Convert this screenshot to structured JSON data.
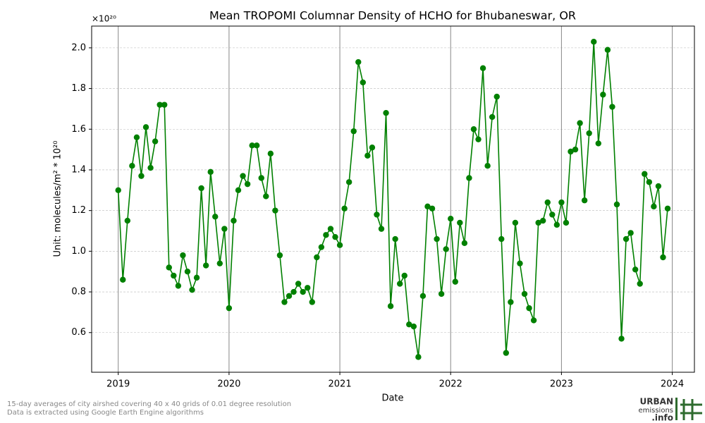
{
  "chart_data": {
    "type": "line",
    "title": "Mean TROPOMI Columnar Density of HCHO for Bhubaneswar, OR",
    "x_label": "Date",
    "y_label": "Unit: molecules/m² * 10²⁰",
    "y_offset_label": "×10²⁰",
    "footnotes": [
      "15-day averages of city airshed covering 40 x 40 grids of 0.01 degree resolution",
      "Data is extracted using Google Earth Engine algorithms"
    ],
    "logo": [
      "URBAN",
      "emissions",
      ".info"
    ],
    "grid": true,
    "x": [
      2019,
      2019.0417,
      2019.0833,
      2019.125,
      2019.1667,
      2019.2083,
      2019.25,
      2019.2917,
      2019.3333,
      2019.375,
      2019.4167,
      2019.4583,
      2019.5,
      2019.5417,
      2019.5833,
      2019.625,
      2019.6667,
      2019.7083,
      2019.75,
      2019.7917,
      2019.8333,
      2019.875,
      2019.9167,
      2019.9583,
      2020,
      2020.0417,
      2020.0833,
      2020.125,
      2020.1667,
      2020.2083,
      2020.25,
      2020.2917,
      2020.3333,
      2020.375,
      2020.4167,
      2020.4583,
      2020.5,
      2020.5417,
      2020.5833,
      2020.625,
      2020.6667,
      2020.7083,
      2020.75,
      2020.7917,
      2020.8333,
      2020.875,
      2020.9167,
      2020.9583,
      2021,
      2021.0417,
      2021.0833,
      2021.125,
      2021.1667,
      2021.2083,
      2021.25,
      2021.2917,
      2021.3333,
      2021.375,
      2021.4167,
      2021.4583,
      2021.5,
      2021.5417,
      2021.5833,
      2021.625,
      2021.6667,
      2021.7083,
      2021.75,
      2021.7917,
      2021.8333,
      2021.875,
      2021.9167,
      2021.9583,
      2022,
      2022.0417,
      2022.0833,
      2022.125,
      2022.1667,
      2022.2083,
      2022.25,
      2022.2917,
      2022.3333,
      2022.375,
      2022.4167,
      2022.4583,
      2022.5,
      2022.5417,
      2022.5833,
      2022.625,
      2022.6667,
      2022.7083,
      2022.75,
      2022.7917,
      2022.8333,
      2022.875,
      2022.9167,
      2022.9583,
      2023,
      2023.0417,
      2023.0833,
      2023.125,
      2023.1667,
      2023.2083,
      2023.25,
      2023.2917,
      2023.3333,
      2023.375,
      2023.4167,
      2023.4583,
      2023.5,
      2023.5417,
      2023.5833,
      2023.625,
      2023.6667,
      2023.7083,
      2023.75,
      2023.7917,
      2023.8333,
      2023.875,
      2023.9167,
      2023.9583
    ],
    "series": [
      {
        "name": "HCHO",
        "color": "#008000",
        "values": [
          1.3,
          0.86,
          1.15,
          1.42,
          1.56,
          1.37,
          1.61,
          1.41,
          1.54,
          1.72,
          1.72,
          0.92,
          0.88,
          0.83,
          0.98,
          0.9,
          0.81,
          0.87,
          1.31,
          0.93,
          1.39,
          1.17,
          0.94,
          1.11,
          0.72,
          1.15,
          1.3,
          1.37,
          1.33,
          1.52,
          1.52,
          1.36,
          1.27,
          1.48,
          1.2,
          0.98,
          0.75,
          0.78,
          0.8,
          0.84,
          0.8,
          0.82,
          0.75,
          0.97,
          1.02,
          1.08,
          1.11,
          1.07,
          1.03,
          1.21,
          1.34,
          1.59,
          1.93,
          1.83,
          1.47,
          1.51,
          1.18,
          1.11,
          1.68,
          0.73,
          1.06,
          0.84,
          0.88,
          0.64,
          0.63,
          0.48,
          0.78,
          1.22,
          1.21,
          1.06,
          0.79,
          1.01,
          1.16,
          0.85,
          1.14,
          1.04,
          1.36,
          1.6,
          1.55,
          1.9,
          1.42,
          1.66,
          1.76,
          1.06,
          0.5,
          0.75,
          1.14,
          0.94,
          0.79,
          0.72,
          0.66,
          1.14,
          1.15,
          1.24,
          1.18,
          1.13,
          1.24,
          1.14,
          1.49,
          1.5,
          1.63,
          1.25,
          1.58,
          2.03,
          1.53,
          1.77,
          1.99,
          1.71,
          1.23,
          0.57,
          1.06,
          1.09,
          0.91,
          0.84,
          1.38,
          1.34,
          1.22,
          1.32,
          0.97,
          1.21
        ]
      }
    ],
    "xlim": [
      2018.76,
      2024.2
    ],
    "xticks": [
      2019,
      2020,
      2021,
      2022,
      2023,
      2024
    ],
    "ylim": [
      0.405,
      2.107
    ],
    "yticks": [
      0.6,
      0.8,
      {
        "value": 1,
        "label": "1.0"
      },
      1.2,
      1.4,
      1.6,
      1.8,
      {
        "value": 2,
        "label": "2.0"
      }
    ]
  }
}
